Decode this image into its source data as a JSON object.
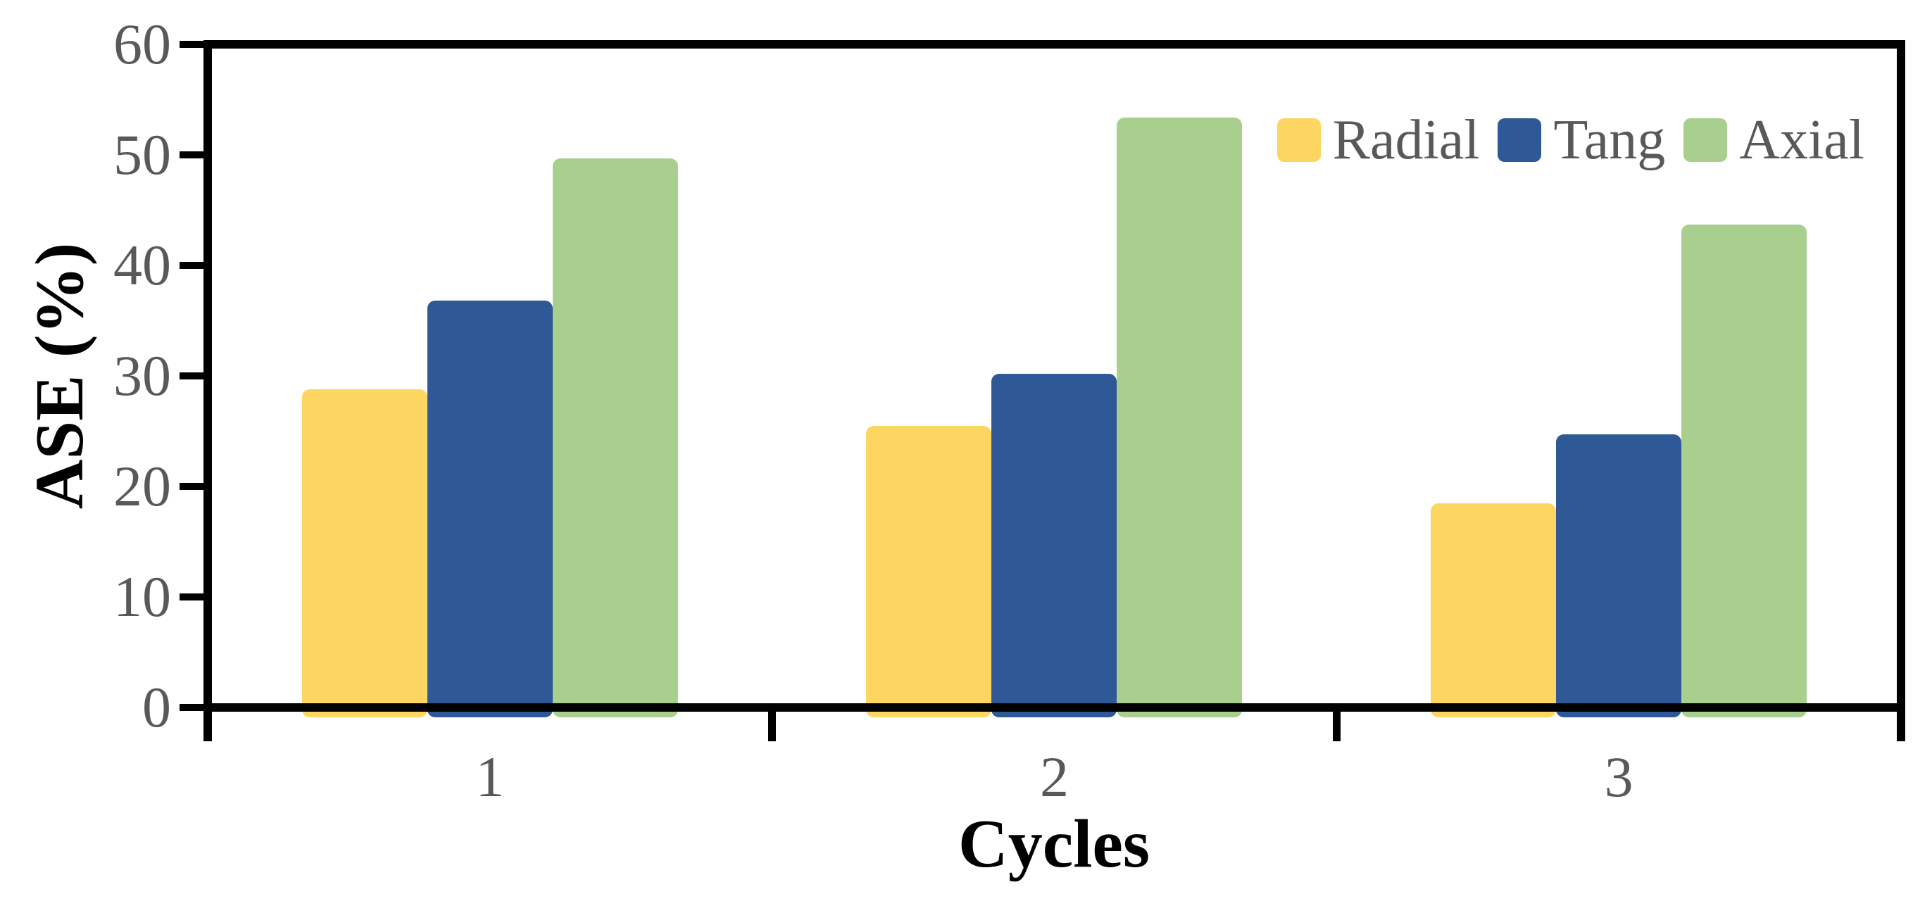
{
  "figure": {
    "y_axis_title": "ASE (%)",
    "x_axis_title": "Cycles"
  },
  "chart_data": {
    "type": "bar",
    "title": "",
    "xlabel": "Cycles",
    "ylabel": "ASE (%)",
    "categories": [
      "1",
      "2",
      "3"
    ],
    "series": [
      {
        "name": "Radial",
        "color": "#FCD661",
        "values": [
          28.8,
          25.5,
          18.5
        ]
      },
      {
        "name": "Tang",
        "color": "#2F5896",
        "values": [
          36.8,
          30.2,
          24.7
        ]
      },
      {
        "name": "Axial",
        "color": "#A9CF8E",
        "values": [
          49.7,
          53.4,
          43.7
        ]
      }
    ],
    "ylim": [
      0,
      60
    ],
    "y_ticks": [
      0,
      10,
      20,
      30,
      40,
      50,
      60
    ],
    "grid": false,
    "legend_position": "top-right-inside",
    "colors": {
      "axis": "#000000",
      "tick_label": "#595959",
      "legend_text": "#595959",
      "axis_title": "#000000",
      "background": "#FFFFFF"
    }
  }
}
